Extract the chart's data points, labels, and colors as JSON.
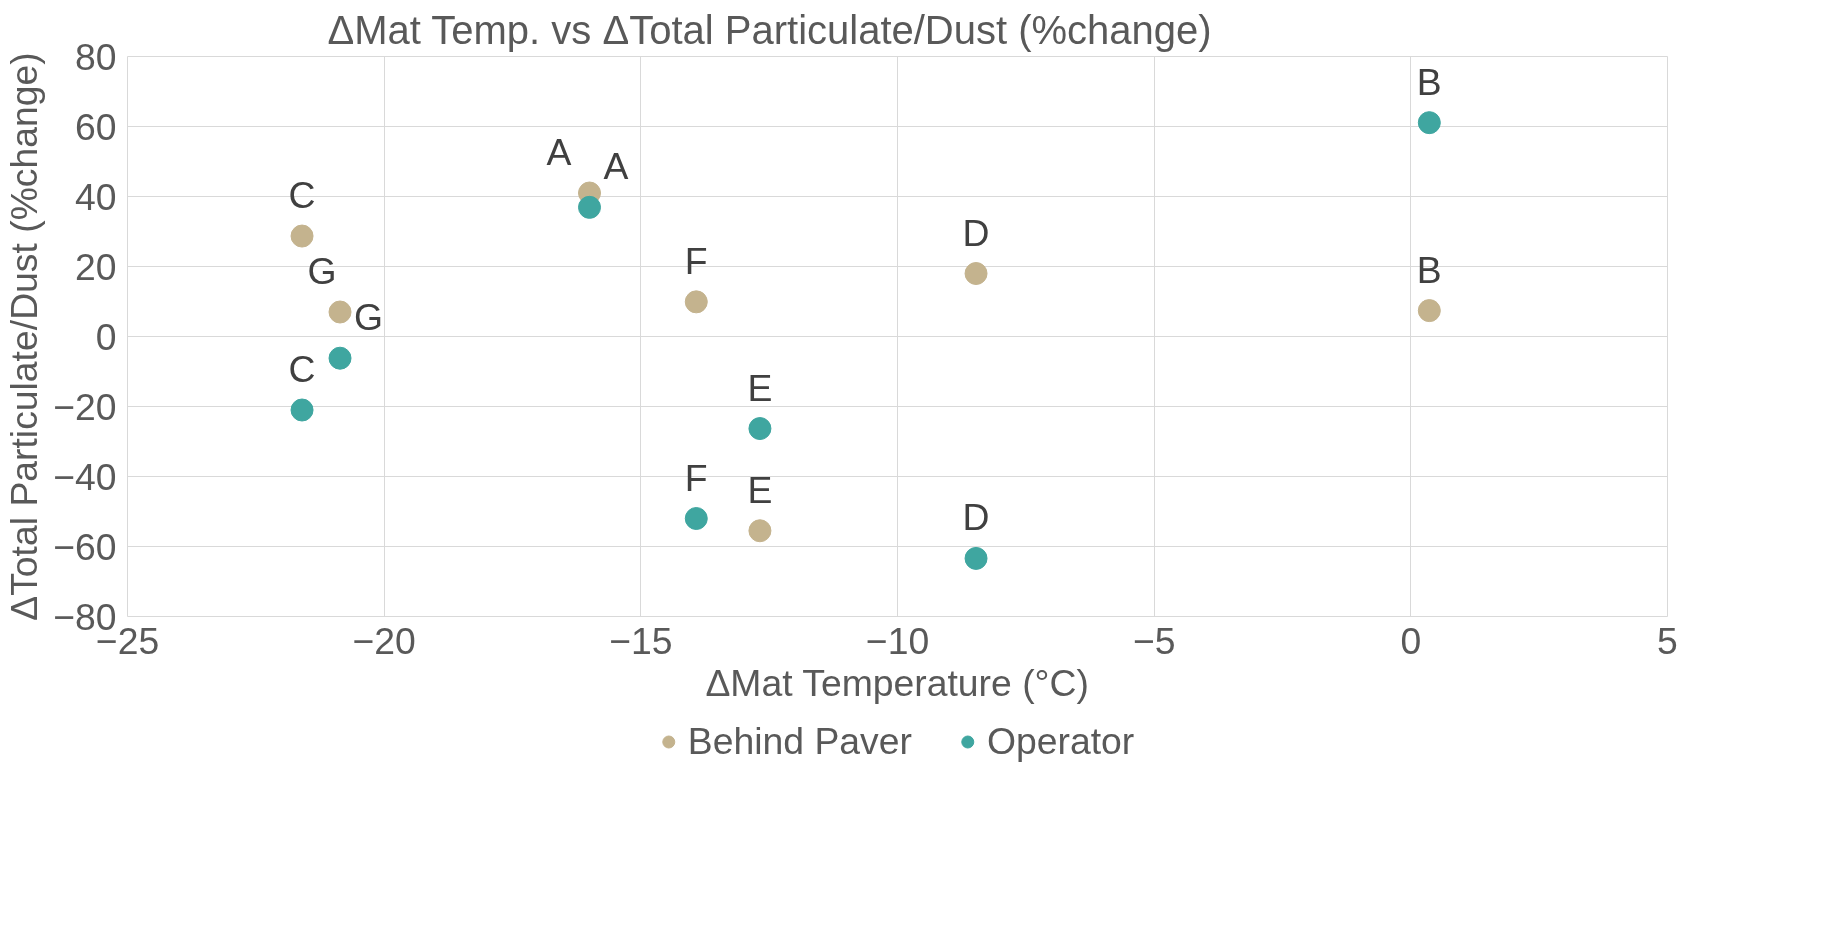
{
  "chart_data": {
    "type": "scatter",
    "title": "ΔMat Temp. vs ΔTotal Particulate/Dust (%change)",
    "xlabel": "ΔMat Temperature (°C)",
    "ylabel": "ΔTotal Particulate/Dust (%change)",
    "series": [
      {
        "name": "Behind Paver",
        "color": "#c4b38e",
        "x": [
          -21.6,
          -20.86,
          -16.0,
          -13.92,
          -12.68,
          -8.47,
          0.36
        ],
        "values": [
          28.7,
          7.0,
          41.0,
          9.9,
          -55.5,
          18.0,
          7.4
        ]
      },
      {
        "name": "Operator",
        "color": "#3fa6a0",
        "x": [
          -21.6,
          -20.86,
          -16.0,
          -13.92,
          -12.68,
          -8.47,
          0.36
        ],
        "values": [
          -21.0,
          -6.2,
          36.9,
          -52.0,
          -26.3,
          -63.4,
          61.1
        ]
      }
    ],
    "annotations": [
      {
        "text": "C",
        "x": -21.6,
        "y": 28.7
      },
      {
        "text": "G",
        "x": -20.86,
        "y": 7.0
      },
      {
        "text": "A",
        "x": -16.0,
        "y": 41.0
      },
      {
        "text": "F",
        "x": -13.92,
        "y": 9.9
      },
      {
        "text": "E",
        "x": -12.68,
        "y": -55.5
      },
      {
        "text": "D",
        "x": -8.47,
        "y": 18.0
      },
      {
        "text": "B",
        "x": 0.36,
        "y": 7.4
      },
      {
        "text": "C",
        "x": -21.6,
        "y": -21.0
      },
      {
        "text": "G",
        "x": -20.86,
        "y": -6.2
      },
      {
        "text": "A",
        "x": -16.0,
        "y": 36.9
      },
      {
        "text": "F",
        "x": -13.92,
        "y": -52.0
      },
      {
        "text": "E",
        "x": -12.68,
        "y": -26.3
      },
      {
        "text": "D",
        "x": -8.47,
        "y": -63.4
      },
      {
        "text": "B",
        "x": 0.36,
        "y": 61.1
      }
    ],
    "xlim": [
      -25,
      5
    ],
    "xticks": [
      -25,
      -20,
      -15,
      -10,
      -5,
      0,
      5
    ],
    "ylim": [
      -80,
      80
    ],
    "yticks": [
      -80,
      -60,
      -40,
      -20,
      0,
      20,
      40,
      60,
      80
    ],
    "grid": true,
    "legend": "bottom",
    "marker": "circle"
  }
}
